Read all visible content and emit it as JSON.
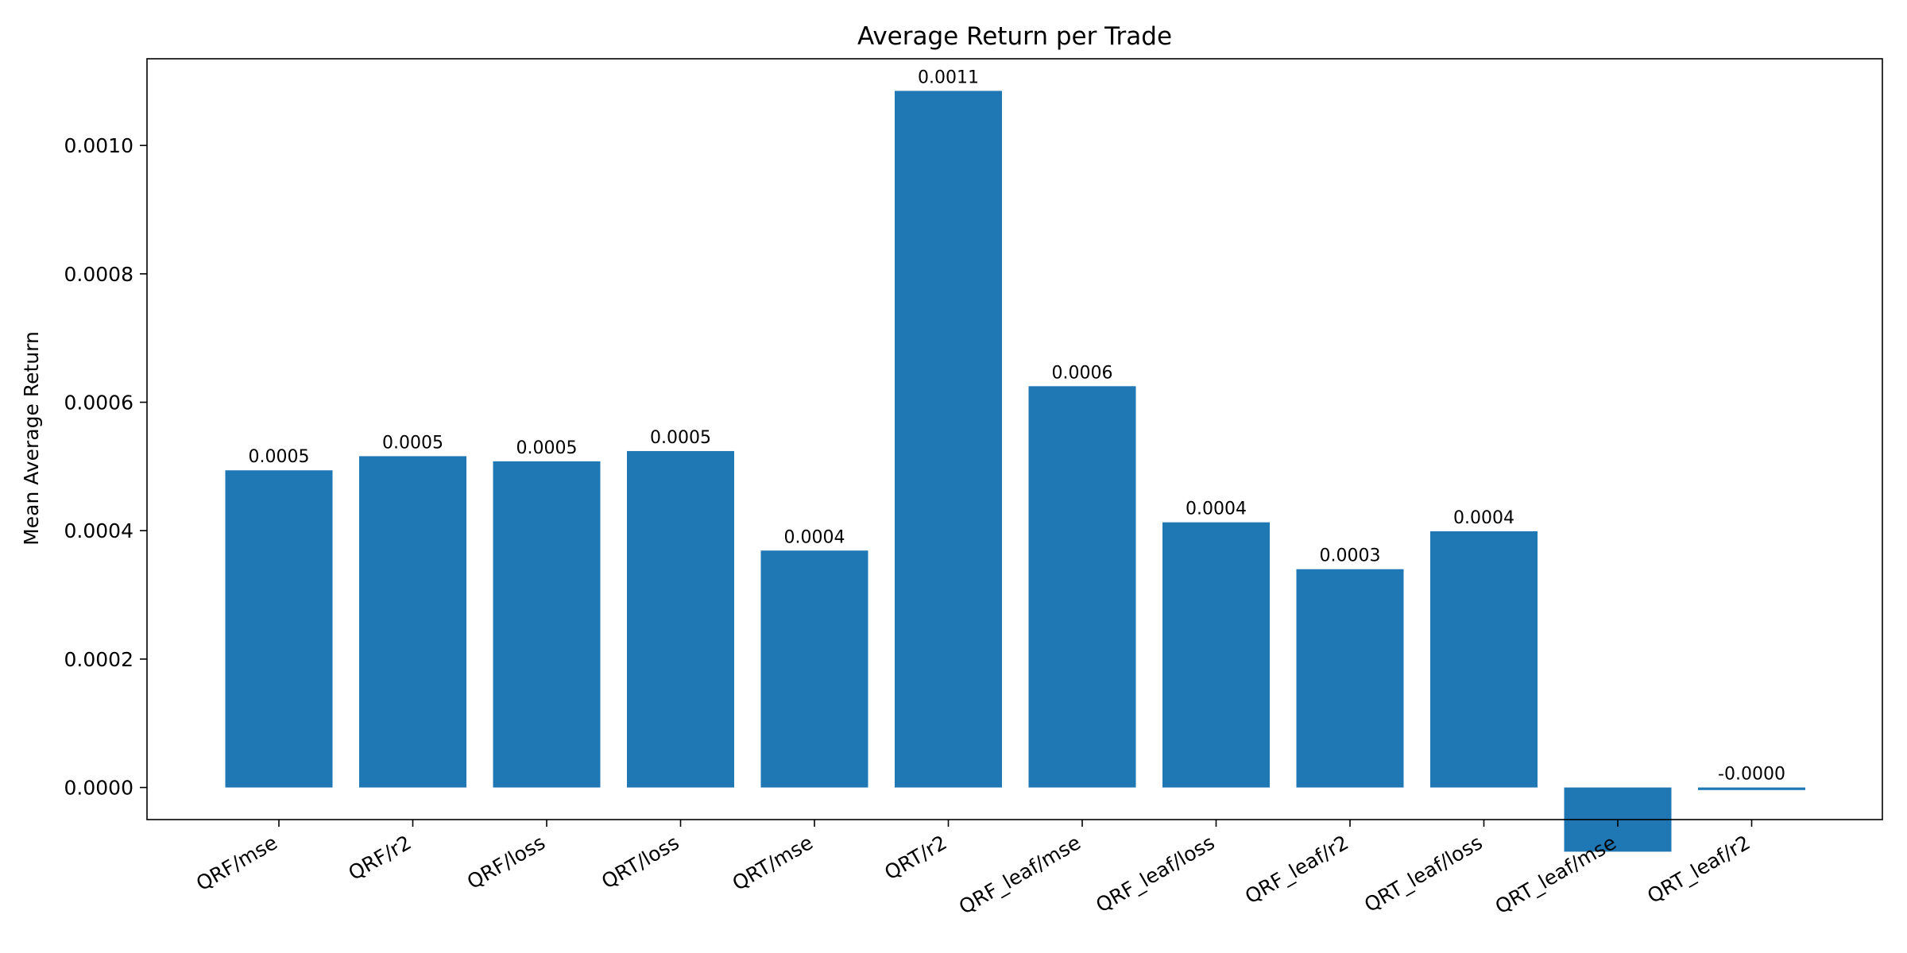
{
  "chart_data": {
    "type": "bar",
    "title": "Average Return per Trade",
    "xlabel": "",
    "ylabel": "Mean Average Return",
    "categories": [
      "QRF/mse",
      "QRF/r2",
      "QRF/loss",
      "QRT/loss",
      "QRT/mse",
      "QRT/r2",
      "QRF_leaf/mse",
      "QRF_leaf/loss",
      "QRF_leaf/r2",
      "QRT_leaf/loss",
      "QRT_leaf/mse",
      "QRT_leaf/r2"
    ],
    "values": [
      0.000494,
      0.000516,
      0.000508,
      0.000524,
      0.000369,
      0.001085,
      0.000625,
      0.000413,
      0.00034,
      0.000399,
      -0.0001,
      -4e-06
    ],
    "data_labels": [
      "0.0005",
      "0.0005",
      "0.0005",
      "0.0005",
      "0.0004",
      "0.0011",
      "0.0006",
      "0.0004",
      "0.0003",
      "0.0004",
      "",
      "-0.0000"
    ],
    "yticks": [
      0.0,
      0.0002,
      0.0004,
      0.0006,
      0.0008,
      0.001
    ],
    "ytick_labels": [
      "0.0000",
      "0.0002",
      "0.0004",
      "0.0006",
      "0.0008",
      "0.0010"
    ],
    "ylim": [
      -5e-05,
      0.001135
    ],
    "grid": false,
    "bar_color": "#1f77b4"
  }
}
